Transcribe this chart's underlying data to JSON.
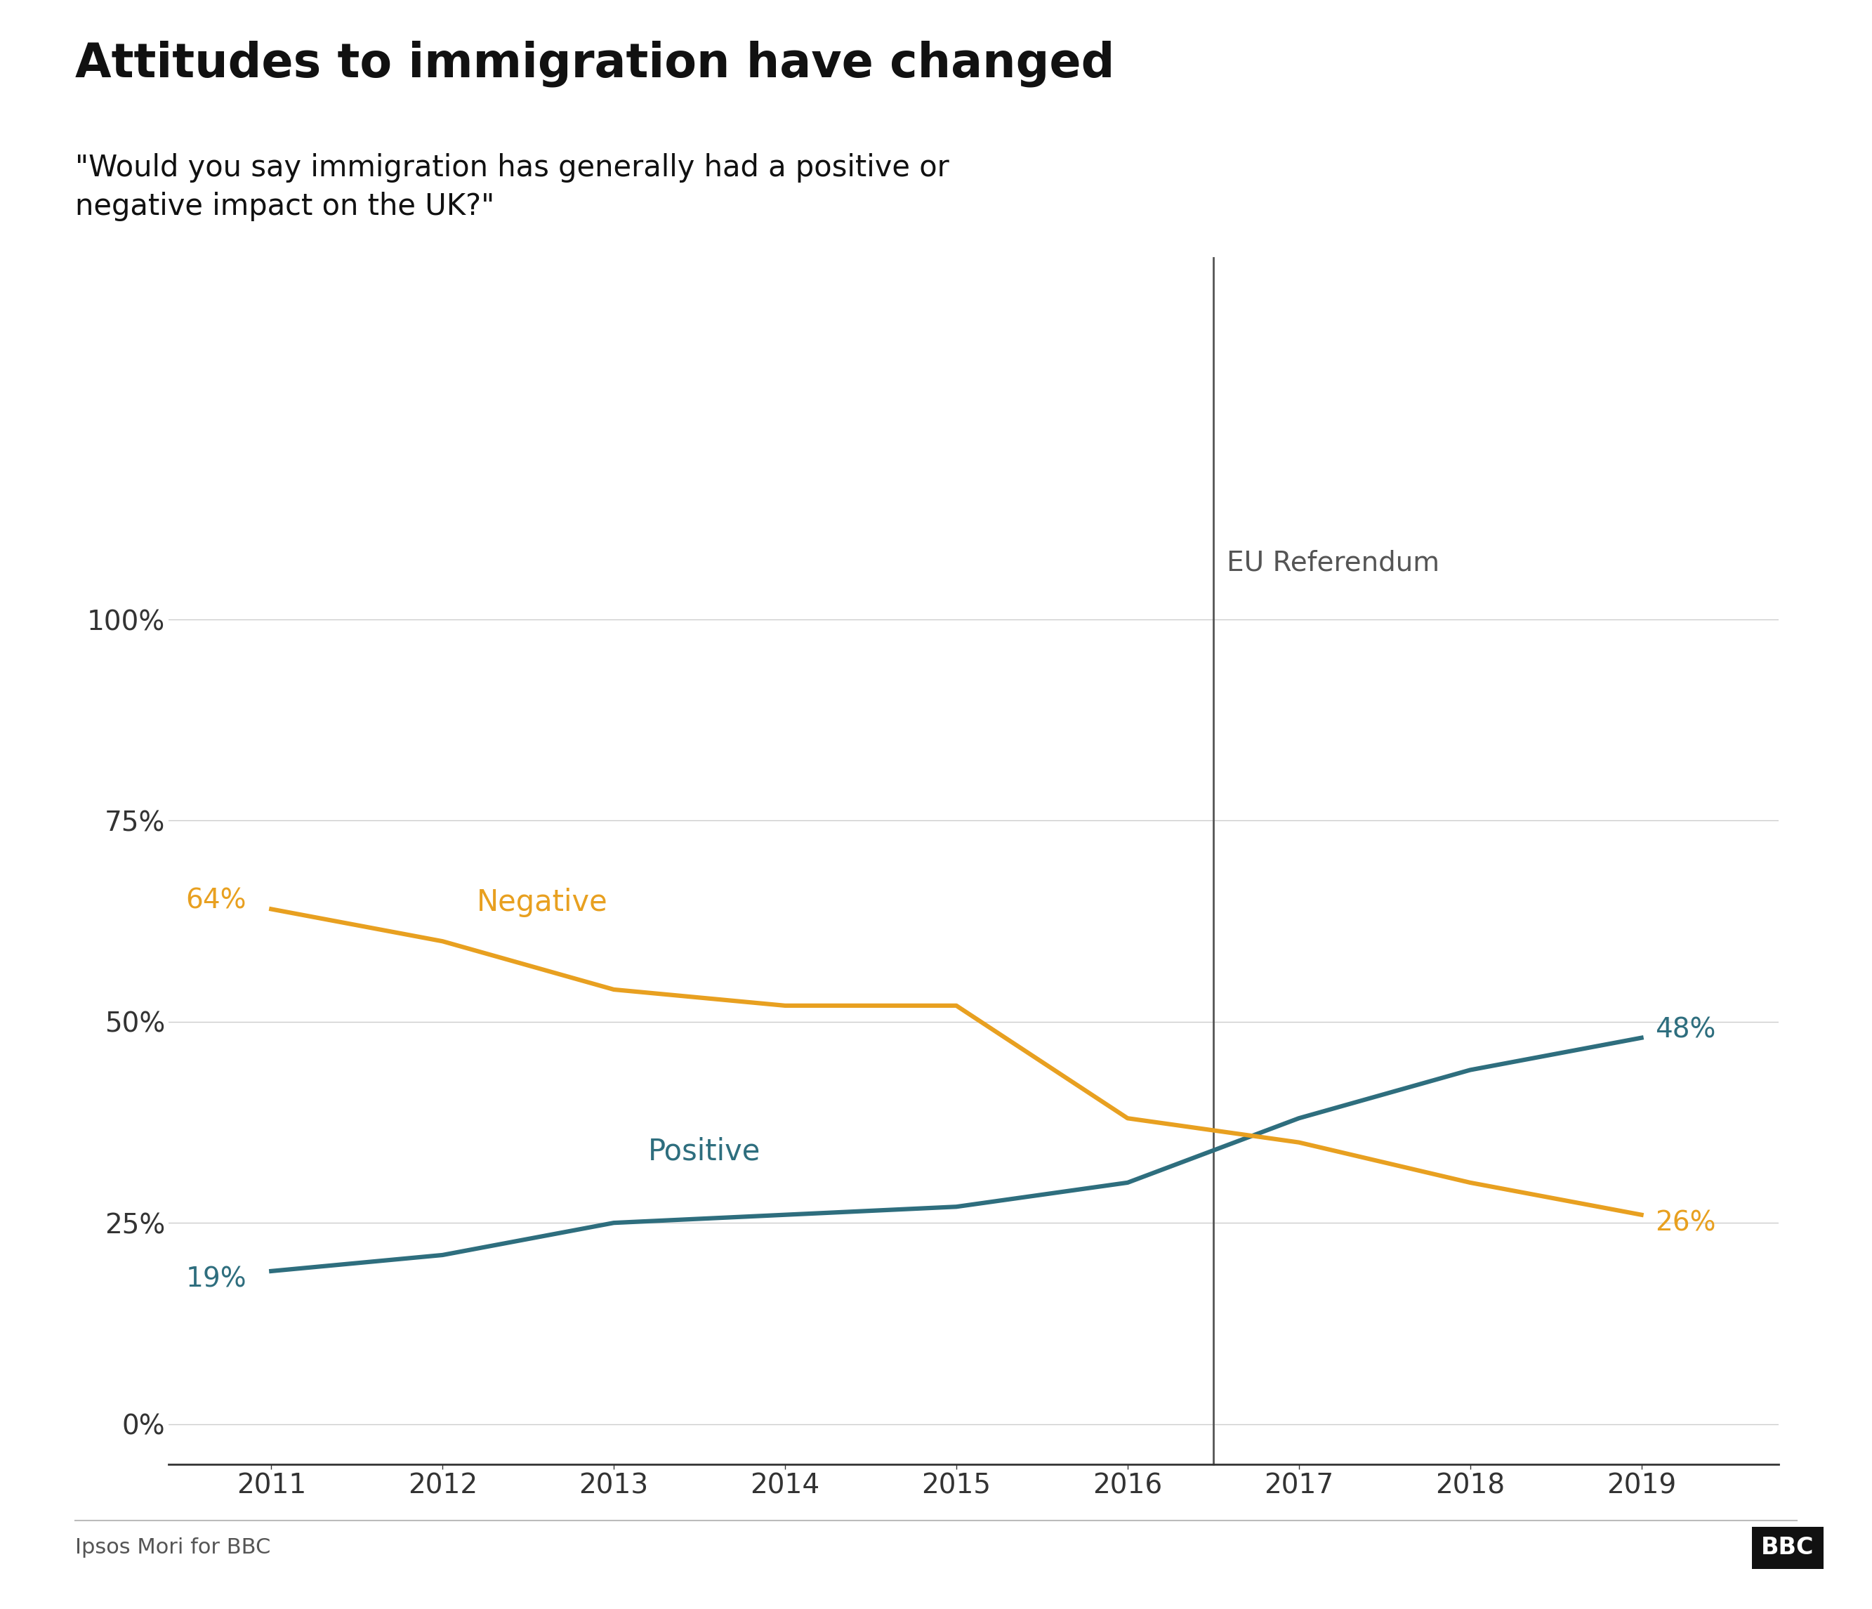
{
  "title": "Attitudes to immigration have changed",
  "subtitle": "\"Would you say immigration has generally had a positive or\nnegative impact on the UK?\"",
  "positive_x": [
    2011,
    2012,
    2013,
    2014,
    2015,
    2016,
    2017,
    2018,
    2019
  ],
  "positive_y": [
    19,
    21,
    25,
    26,
    27,
    30,
    38,
    44,
    48
  ],
  "negative_x": [
    2011,
    2012,
    2013,
    2014,
    2015,
    2016,
    2017,
    2018,
    2019
  ],
  "negative_y": [
    64,
    60,
    54,
    52,
    52,
    38,
    35,
    30,
    26
  ],
  "positive_color": "#2E6E7E",
  "negative_color": "#E8A020",
  "eu_ref_x": 2016.5,
  "eu_ref_label": "EU Referendum",
  "positive_label": "Positive",
  "negative_label": "Negative",
  "positive_start_label": "19%",
  "negative_start_label": "64%",
  "positive_end_label": "48%",
  "negative_end_label": "26%",
  "yticks": [
    0,
    25,
    50,
    75,
    100
  ],
  "xticks": [
    2011,
    2012,
    2013,
    2014,
    2015,
    2016,
    2017,
    2018,
    2019
  ],
  "ylim": [
    -5,
    115
  ],
  "xlim": [
    2010.4,
    2019.8
  ],
  "source_text": "Ipsos Mori for BBC",
  "bbc_text": "BBC",
  "background_color": "#ffffff",
  "grid_color": "#cccccc",
  "title_fontsize": 48,
  "subtitle_fontsize": 30,
  "tick_fontsize": 28,
  "label_fontsize": 30,
  "annotation_fontsize": 28,
  "source_fontsize": 22,
  "line_width": 4.5
}
